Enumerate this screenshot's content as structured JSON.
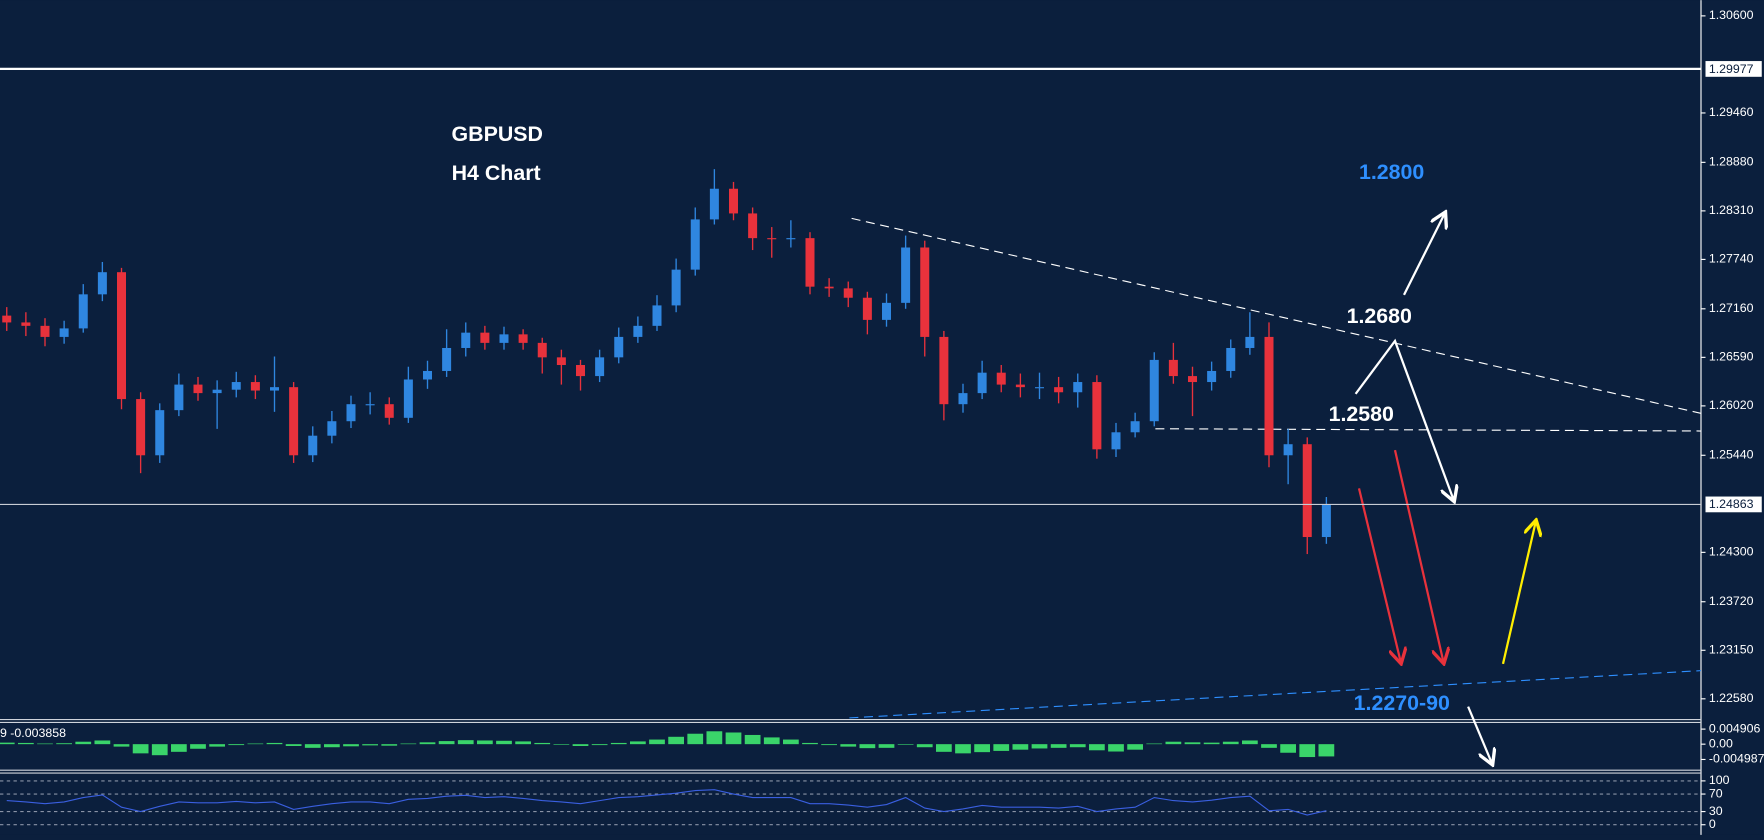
{
  "chart_data": [
    {
      "type": "candlestick",
      "title": "GBPUSD",
      "subtitle": "H4 Chart",
      "up_color": "#2f86e0",
      "down_color": "#e8323c",
      "open": [
        1.2708,
        1.27,
        1.2696,
        1.2683,
        1.2693,
        1.2733,
        1.2759,
        1.261,
        1.2544,
        1.2597,
        1.2627,
        1.2617,
        1.2621,
        1.263,
        1.262,
        1.2624,
        1.2544,
        1.2567,
        1.2584,
        1.2604,
        1.2604,
        1.2588,
        1.2633,
        1.2643,
        1.267,
        1.2688,
        1.2676,
        1.2686,
        1.2676,
        1.2659,
        1.265,
        1.2637,
        1.2659,
        1.2683,
        1.2696,
        1.272,
        1.2762,
        1.2821,
        1.2857,
        1.2828,
        1.2799,
        1.2798,
        1.2799,
        1.2742,
        1.274,
        1.2729,
        1.2703,
        1.2723,
        1.2788,
        1.2683,
        1.2604,
        1.2617,
        1.2641,
        1.2627,
        1.2624,
        1.2624,
        1.2618,
        1.263,
        1.2551,
        1.2571,
        1.2584,
        1.2656,
        1.2637,
        1.263,
        1.2643,
        1.267,
        1.2683,
        1.2544,
        1.2557,
        1.2448
      ],
      "high": [
        1.2718,
        1.2712,
        1.2705,
        1.2702,
        1.2745,
        1.2771,
        1.2764,
        1.2618,
        1.2605,
        1.264,
        1.2636,
        1.2632,
        1.2642,
        1.2638,
        1.266,
        1.263,
        1.2578,
        1.2596,
        1.2614,
        1.2618,
        1.2612,
        1.2648,
        1.2655,
        1.2692,
        1.27,
        1.2696,
        1.2695,
        1.2692,
        1.2682,
        1.2668,
        1.2656,
        1.2668,
        1.2694,
        1.2707,
        1.2732,
        1.2775,
        1.2835,
        1.288,
        1.2865,
        1.2835,
        1.2812,
        1.282,
        1.2806,
        1.2752,
        1.2748,
        1.2736,
        1.2734,
        1.2802,
        1.2796,
        1.269,
        1.2628,
        1.2655,
        1.265,
        1.264,
        1.2641,
        1.2636,
        1.264,
        1.2638,
        1.2582,
        1.2594,
        1.2665,
        1.2676,
        1.2648,
        1.2654,
        1.268,
        1.2712,
        1.27,
        1.2575,
        1.2565,
        1.2495
      ],
      "low": [
        1.269,
        1.2684,
        1.2672,
        1.2675,
        1.2688,
        1.2725,
        1.2598,
        1.2523,
        1.2535,
        1.259,
        1.2608,
        1.2575,
        1.2612,
        1.261,
        1.2595,
        1.2535,
        1.2536,
        1.2558,
        1.2576,
        1.2592,
        1.258,
        1.2582,
        1.2622,
        1.2636,
        1.266,
        1.2668,
        1.2668,
        1.2668,
        1.264,
        1.2627,
        1.262,
        1.263,
        1.2652,
        1.2676,
        1.269,
        1.2712,
        1.2755,
        1.2815,
        1.282,
        1.2785,
        1.2776,
        1.2788,
        1.2733,
        1.273,
        1.2718,
        1.2686,
        1.2695,
        1.2716,
        1.266,
        1.2585,
        1.2594,
        1.261,
        1.2618,
        1.2612,
        1.261,
        1.2605,
        1.26,
        1.254,
        1.2542,
        1.2565,
        1.2578,
        1.2628,
        1.259,
        1.262,
        1.2635,
        1.2662,
        1.253,
        1.251,
        1.2428,
        1.244
      ],
      "close": [
        1.27,
        1.2696,
        1.2683,
        1.2693,
        1.2733,
        1.2759,
        1.261,
        1.2544,
        1.2597,
        1.2627,
        1.2617,
        1.2621,
        1.263,
        1.262,
        1.2624,
        1.2544,
        1.2567,
        1.2584,
        1.2604,
        1.2604,
        1.2588,
        1.2633,
        1.2643,
        1.267,
        1.2688,
        1.2676,
        1.2686,
        1.2676,
        1.2659,
        1.265,
        1.2637,
        1.2659,
        1.2683,
        1.2696,
        1.272,
        1.2762,
        1.2821,
        1.2857,
        1.2828,
        1.2799,
        1.2798,
        1.2799,
        1.2742,
        1.274,
        1.2729,
        1.2703,
        1.2723,
        1.2788,
        1.2683,
        1.2604,
        1.2617,
        1.2641,
        1.2627,
        1.2624,
        1.2624,
        1.2618,
        1.263,
        1.2551,
        1.2571,
        1.2584,
        1.2656,
        1.2637,
        1.263,
        1.2643,
        1.267,
        1.2683,
        1.2544,
        1.2557,
        1.2448,
        1.2486
      ],
      "ylim": [
        1.22343,
        1.30785
      ],
      "yticks": [
        {
          "value": 1.306,
          "label": "1.30600"
        },
        {
          "value": 1.2946,
          "label": "1.29460"
        },
        {
          "value": 1.2888,
          "label": "1.28880"
        },
        {
          "value": 1.2831,
          "label": "1.28310"
        },
        {
          "value": 1.2774,
          "label": "1.27740"
        },
        {
          "value": 1.2716,
          "label": "1.27160"
        },
        {
          "value": 1.2659,
          "label": "1.26590"
        },
        {
          "value": 1.2602,
          "label": "1.26020"
        },
        {
          "value": 1.2544,
          "label": "1.25440"
        },
        {
          "value": 1.243,
          "label": "1.24300"
        },
        {
          "value": 1.2372,
          "label": "1.23720"
        },
        {
          "value": 1.2315,
          "label": "1.23150"
        },
        {
          "value": 1.2258,
          "label": "1.22580"
        }
      ],
      "hlines": [
        {
          "value": 1.29977,
          "label": "1.29977",
          "color": "#ffffff"
        },
        {
          "value": 1.24863,
          "label": "1.24863",
          "color": "#c8ccd4"
        }
      ],
      "annotations": [
        {
          "text": "1.2800"
        },
        {
          "text": "1.2680"
        },
        {
          "text": "1.2580"
        },
        {
          "text": "1.2270-90"
        }
      ]
    },
    {
      "type": "bar",
      "label": "9 -0.003858",
      "color": "#3ad46a",
      "values": [
        0.0005,
        0.0004,
        0.0002,
        0.0003,
        0.0008,
        0.0012,
        -0.0008,
        -0.003,
        -0.0036,
        -0.0025,
        -0.0015,
        -0.0008,
        -0.0003,
        0.0002,
        0.0004,
        -0.0006,
        -0.0012,
        -0.001,
        -0.0007,
        -0.0004,
        -0.0005,
        0.0002,
        0.0006,
        0.001,
        0.0013,
        0.0012,
        0.0011,
        0.0009,
        0.0004,
        -0.0002,
        -0.0006,
        -0.0003,
        0.0004,
        0.0009,
        0.0015,
        0.0024,
        0.0034,
        0.0042,
        0.0038,
        0.003,
        0.0022,
        0.0015,
        0.0004,
        -0.0003,
        -0.0008,
        -0.0013,
        -0.0012,
        -0.0002,
        -0.001,
        -0.0025,
        -0.003,
        -0.0026,
        -0.0022,
        -0.0018,
        -0.0014,
        -0.0012,
        -0.001,
        -0.002,
        -0.0024,
        -0.0018,
        0.0002,
        0.0008,
        0.0006,
        0.0005,
        0.0008,
        0.0012,
        -0.0012,
        -0.0028,
        -0.0042,
        -0.004
      ],
      "ylim": [
        -0.0083,
        0.0071
      ],
      "yticks": [
        {
          "value": 0.004906,
          "label": "0.004906"
        },
        {
          "value": 0,
          "label": "0.00"
        },
        {
          "value": -0.004987,
          "label": "-0.004987"
        }
      ]
    },
    {
      "type": "line",
      "color": "#3a5fe0",
      "values": [
        55,
        52,
        48,
        52,
        62,
        68,
        40,
        30,
        42,
        52,
        50,
        50,
        53,
        50,
        52,
        35,
        42,
        48,
        52,
        52,
        48,
        58,
        60,
        65,
        67,
        62,
        64,
        60,
        55,
        52,
        48,
        55,
        62,
        64,
        68,
        72,
        78,
        80,
        70,
        62,
        62,
        62,
        48,
        48,
        45,
        40,
        46,
        62,
        38,
        30,
        36,
        44,
        40,
        40,
        40,
        38,
        42,
        30,
        36,
        40,
        62,
        55,
        52,
        56,
        62,
        65,
        32,
        35,
        22,
        32
      ],
      "ylim": [
        -18,
        118
      ],
      "yticks": [
        100,
        70,
        30,
        0
      ]
    }
  ]
}
